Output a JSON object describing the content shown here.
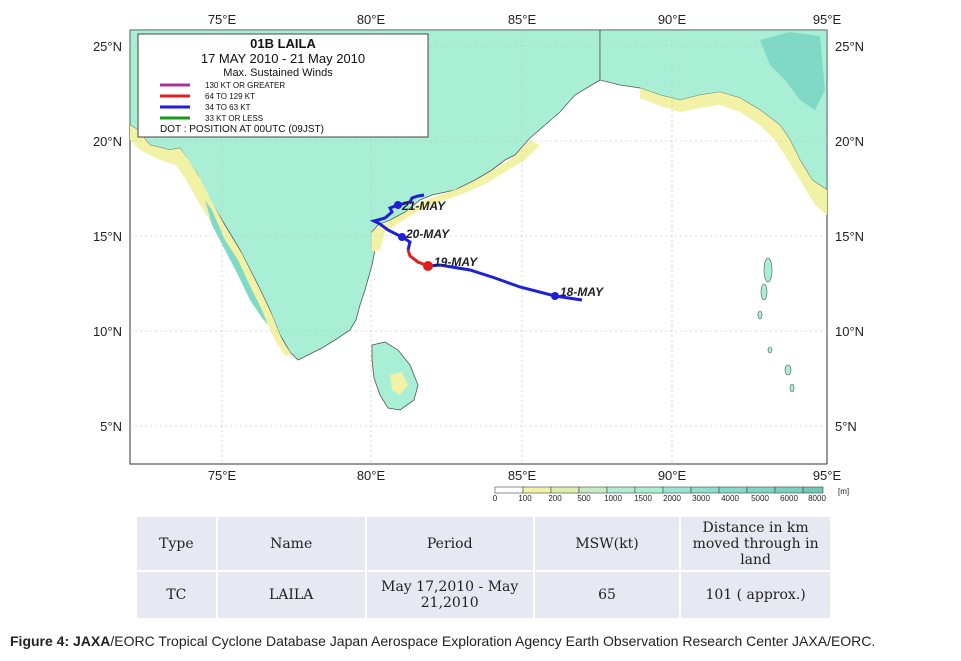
{
  "map": {
    "lon_labels": [
      "75°E",
      "80°E",
      "85°E",
      "90°E",
      "95°E"
    ],
    "lat_labels": [
      "25°N",
      "20°N",
      "15°N",
      "10°N",
      "5°N"
    ],
    "lon_range": [
      72,
      95
    ],
    "lat_range": [
      3,
      26
    ],
    "colors": {
      "ocean": "#ffffff",
      "land_low": "#a8efd6",
      "land_coast": "#f2f2a6",
      "highland": "#7fd9c6",
      "track_blue": "#1f1fd9",
      "track_red": "#e02020",
      "coastline": "#555555"
    }
  },
  "legend": {
    "title": "01B LAILA",
    "period": "17 MAY  2010 - 21 May  2010",
    "subtitle": "Max. Sustained Winds",
    "items": [
      {
        "label": "130 KT OR GREATER",
        "color": "#b0309a"
      },
      {
        "label": "64 TO 129 KT",
        "color": "#e02020"
      },
      {
        "label": "34 TO 63 KT",
        "color": "#1f1fd9"
      },
      {
        "label": "33 KT OR LESS",
        "color": "#1a9a1a"
      }
    ],
    "dot_note": "DOT :  POSITION AT 00UTC (09JST)"
  },
  "track": {
    "date_labels": [
      "18-MAY",
      "19-MAY",
      "20-MAY",
      "21-MAY"
    ]
  },
  "scale": {
    "ticks": [
      "0",
      "100",
      "200",
      "500",
      "1000",
      "1500",
      "2000",
      "3000",
      "4000",
      "5000",
      "6000",
      "8000"
    ],
    "unit": "[m]"
  },
  "table": {
    "headers": [
      "Type",
      "Name",
      "Period",
      "MSW(kt)",
      "Distance  in km moved through in land"
    ],
    "row": [
      "TC",
      "LAILA",
      "May 17,2010 - May 21,2010",
      "65",
      "101 ( approx.)"
    ]
  },
  "caption": {
    "bold": "Figure 4: JAXA",
    "rest": "/EORC Tropical Cyclone Database Japan Aerospace Exploration Agency Earth Observation Research Center JAXA/EORC."
  }
}
